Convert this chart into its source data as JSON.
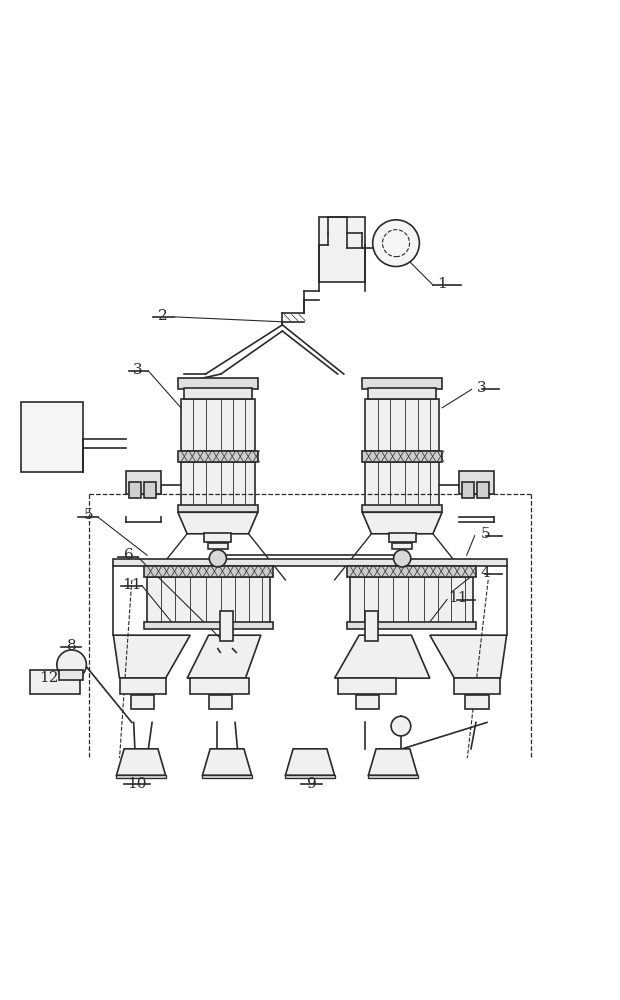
{
  "bg_color": "#ffffff",
  "line_color": "#2a2a2a",
  "lw": 1.2,
  "fig_width": 6.2,
  "fig_height": 10.0
}
